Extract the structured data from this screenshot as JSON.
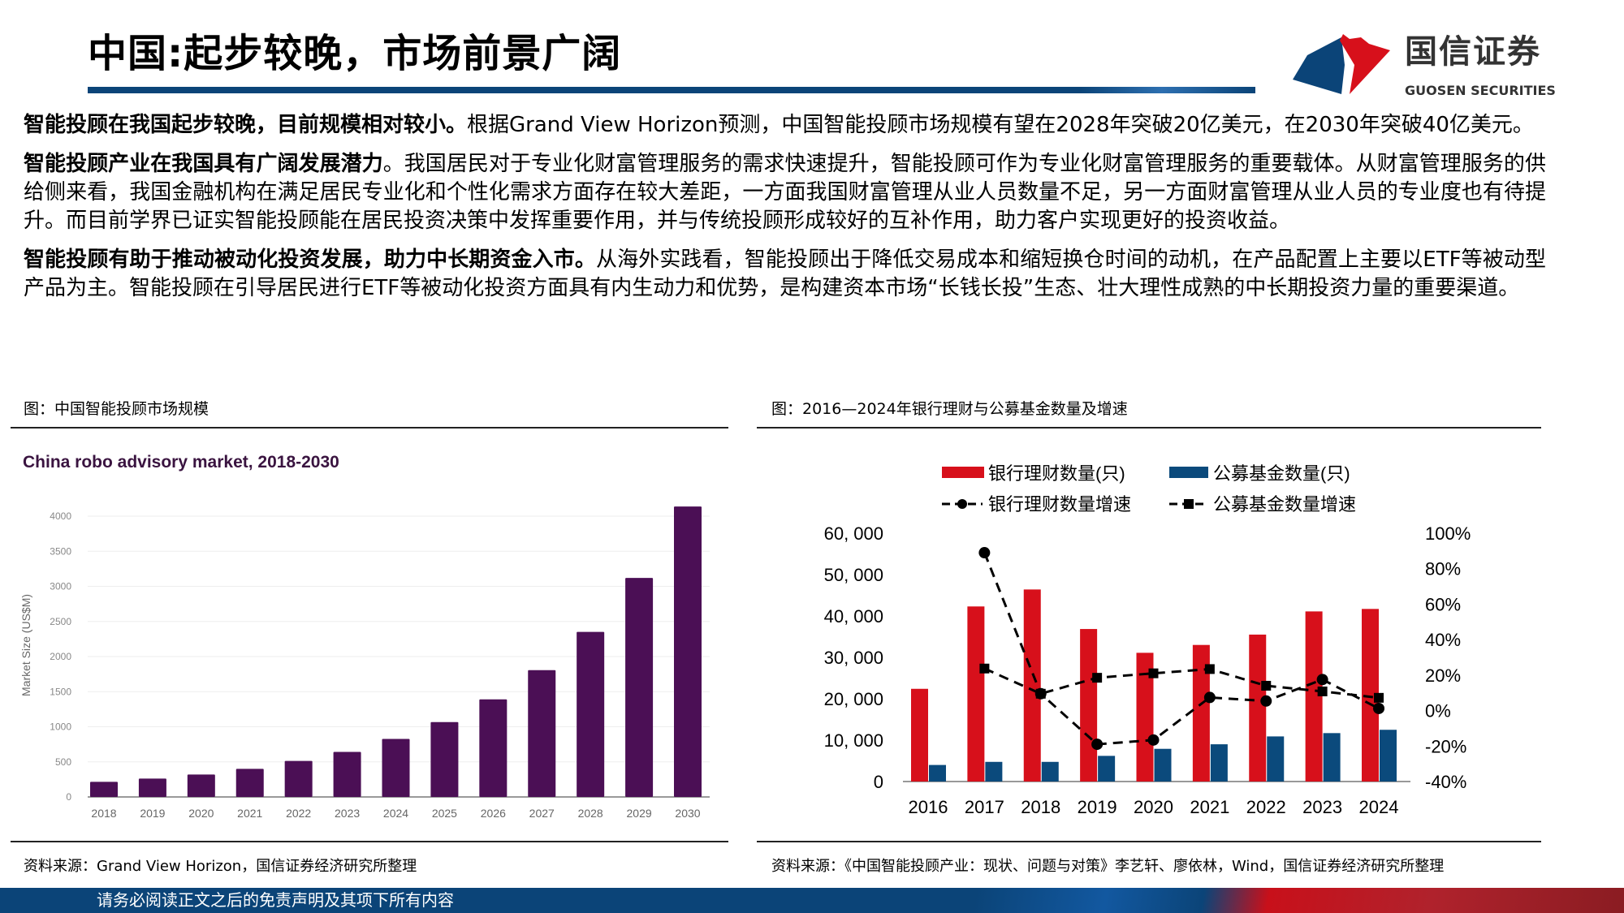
{
  "header": {
    "title": "中国:起步较晚，市场前景广阔",
    "logo_cn": "国信证券",
    "logo_en": "GUOSEN SECURITIES"
  },
  "paragraphs": [
    {
      "lead": "智能投顾在我国起步较晚，目前规模相对较小。",
      "body": "根据Grand View Horizon预测，中国智能投顾市场规模有望在2028年突破20亿美元，在2030年突破40亿美元。"
    },
    {
      "lead": "智能投顾产业在我国具有广阔发展潜力",
      "body": "。我国居民对于专业化财富管理服务的需求快速提升，智能投顾可作为专业化财富管理服务的重要载体。从财富管理服务的供给侧来看，我国金融机构在满足居民专业化和个性化需求方面存在较大差距，一方面我国财富管理从业人员数量不足，另一方面财富管理从业人员的专业度也有待提升。而目前学界已证实智能投顾能在居民投资决策中发挥重要作用，并与传统投顾形成较好的互补作用，助力客户实现更好的投资收益。"
    },
    {
      "lead": "智能投顾有助于推动被动化投资发展，助力中长期资金入市。",
      "body": "从海外实践看，智能投顾出于降低交易成本和缩短换仓时间的动机，在产品配置上主要以ETF等被动型产品为主。智能投顾在引导居民进行ETF等被动化投资方面具有内生动力和优势，是构建资本市场“长钱长投”生态、壮大理性成熟的中长期投资力量的重要渠道。"
    }
  ],
  "left_figure": {
    "caption": "图：中国智能投顾市场规模",
    "source": "资料来源：Grand View Horizon，国信证券经济研究所整理"
  },
  "right_figure": {
    "caption": "图：2016—2024年银行理财与公募基金数量及增速",
    "source": "资料来源：《中国智能投顾产业：现状、问题与对策》李艺轩、廖依林，Wind，国信证券经济研究所整理"
  },
  "footer": {
    "disclaimer": "请务必阅读正文之后的免责声明及其项下所有内容"
  },
  "colors": {
    "brand_blue": "#0b4478",
    "brand_red": "#d7101b",
    "bar_purple": "#4b0f55",
    "bank_red": "#d7101b",
    "fund_blue": "#0b4a7c"
  },
  "chart_data": [
    {
      "type": "bar",
      "title": "China robo advisory market, 2018-2030",
      "xlabel": "",
      "ylabel": "Market Size (US$M)",
      "categories": [
        "2018",
        "2019",
        "2020",
        "2021",
        "2022",
        "2023",
        "2024",
        "2025",
        "2026",
        "2027",
        "2028",
        "2029",
        "2030"
      ],
      "values": [
        216,
        262,
        320,
        401,
        513,
        641,
        826,
        1066,
        1390,
        1807,
        2351,
        3120,
        4137
      ],
      "yticks": [
        "0",
        "500",
        "1000",
        "1500",
        "2000",
        "2500",
        "3000",
        "3500",
        "4000"
      ],
      "ylim": [
        0,
        4000
      ],
      "grid": true
    },
    {
      "type": "bar+line",
      "categories": [
        "2016",
        "2017",
        "2018",
        "2019",
        "2020",
        "2021",
        "2022",
        "2023",
        "2024"
      ],
      "legend_placement": "top",
      "series": [
        {
          "name": "银行理财数量(只)",
          "kind": "bar",
          "axis": "left",
          "values": [
            22400,
            42300,
            46400,
            36850,
            31100,
            33000,
            35500,
            41100,
            41700
          ]
        },
        {
          "name": "公募基金数量(只)",
          "kind": "bar",
          "axis": "left",
          "values": [
            4000,
            4750,
            4750,
            6200,
            7900,
            9000,
            10900,
            11700,
            12500
          ]
        },
        {
          "name": "银行理财数量增速",
          "kind": "line",
          "marker": "circle",
          "axis": "right",
          "values": [
            null,
            89,
            9.5,
            -19,
            -16.6,
            7.4,
            5.4,
            17.5,
            1.2
          ]
        },
        {
          "name": "公募基金数量增速",
          "kind": "line",
          "marker": "square",
          "axis": "right",
          "values": [
            null,
            23.7,
            9.5,
            18.5,
            21,
            23.4,
            14,
            10.8,
            7.2
          ]
        }
      ],
      "yticks_left": [
        "0",
        "10, 000",
        "20, 000",
        "30, 000",
        "40, 000",
        "50, 000",
        "60, 000"
      ],
      "ylim_left": [
        0,
        60000
      ],
      "yticks_right": [
        "-40%",
        "-20%",
        "0%",
        "20%",
        "40%",
        "60%",
        "80%",
        "100%"
      ],
      "ylim_right": [
        -40,
        100
      ],
      "grid": false
    }
  ]
}
